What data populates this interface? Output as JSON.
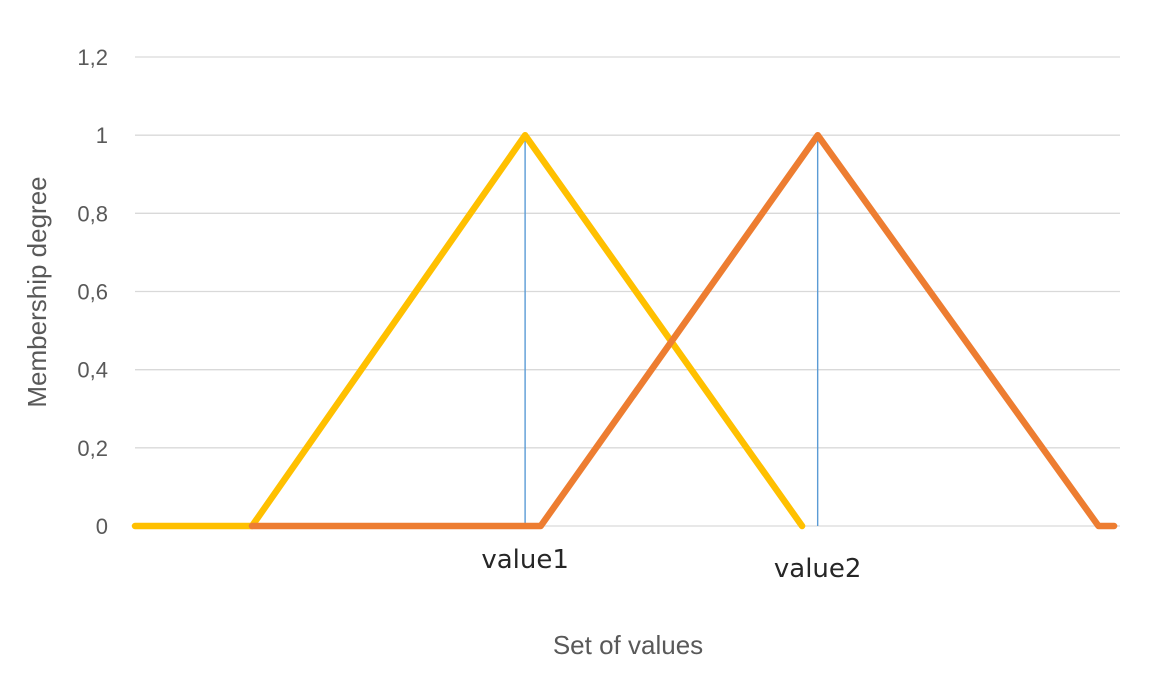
{
  "chart_data": {
    "type": "line",
    "title": "",
    "xlabel": "Set of values",
    "ylabel": "Membership degree",
    "ylim": [
      0,
      1.2
    ],
    "y_ticks": [
      "0",
      "0,2",
      "0,4",
      "0,6",
      "0,8",
      "1",
      "1,2"
    ],
    "x_labels": [
      "value1",
      "value2"
    ],
    "grid": true,
    "legend": "none",
    "series": [
      {
        "color": "#FFC000",
        "points": [
          {
            "x": 0,
            "y": 0
          },
          {
            "x": 0.6,
            "y": 0
          },
          {
            "x": 2,
            "y": 1
          },
          {
            "x": 3.42,
            "y": 0
          }
        ]
      },
      {
        "color": "#ED7D31",
        "points": [
          {
            "x": 0.6,
            "y": 0
          },
          {
            "x": 2.08,
            "y": 0
          },
          {
            "x": 3.5,
            "y": 1
          },
          {
            "x": 4.94,
            "y": 0
          },
          {
            "x": 5.02,
            "y": 0
          }
        ]
      }
    ],
    "reference_lines": [
      {
        "label": "value1",
        "x": 2,
        "color": "#5B9BD5"
      },
      {
        "label": "value2",
        "x": 3.5,
        "color": "#5B9BD5"
      }
    ],
    "colors": {
      "gridline": "#D9D9D9",
      "tick_text": "#595959",
      "label_text": "#262626"
    }
  }
}
